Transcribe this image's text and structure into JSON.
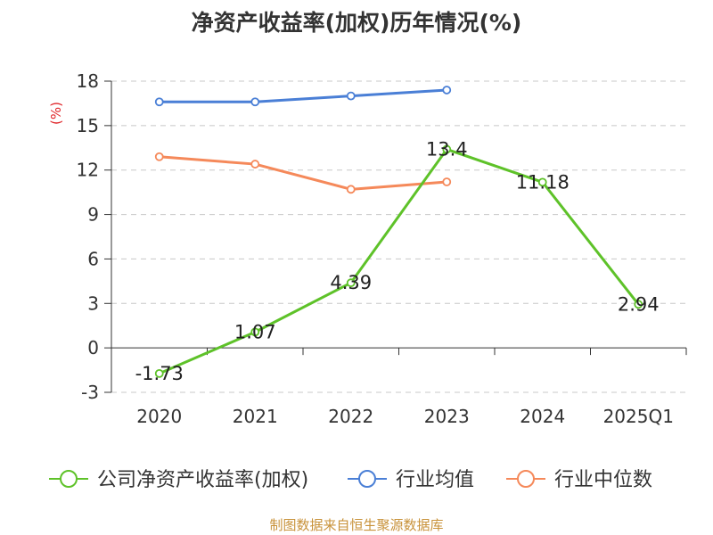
{
  "chart_data": {
    "type": "line",
    "title": "净资产收益率(加权)历年情况(%)",
    "ylabel": "(%)",
    "xlabel": "",
    "categories": [
      "2020",
      "2021",
      "2022",
      "2023",
      "2024",
      "2025Q1"
    ],
    "ylim": [
      -3,
      18
    ],
    "yticks": [
      -3,
      0,
      3,
      6,
      9,
      12,
      15,
      18
    ],
    "grid": true,
    "legend_position": "bottom",
    "series": [
      {
        "name": "公司净资产收益率(加权)",
        "color": "#5ec229",
        "values": [
          -1.73,
          1.07,
          4.39,
          13.4,
          11.18,
          2.94
        ],
        "labels": [
          "-1.73",
          "1.07",
          "4.39",
          "13.4",
          "11.18",
          "2.94"
        ]
      },
      {
        "name": "行业均值",
        "color": "#4a7fd6",
        "values": [
          16.6,
          16.6,
          17.0,
          17.4,
          null,
          null
        ]
      },
      {
        "name": "行业中位数",
        "color": "#f5895a",
        "values": [
          12.9,
          12.4,
          10.7,
          11.2,
          null,
          null
        ]
      }
    ]
  },
  "source": "制图数据来自恒生聚源数据库"
}
